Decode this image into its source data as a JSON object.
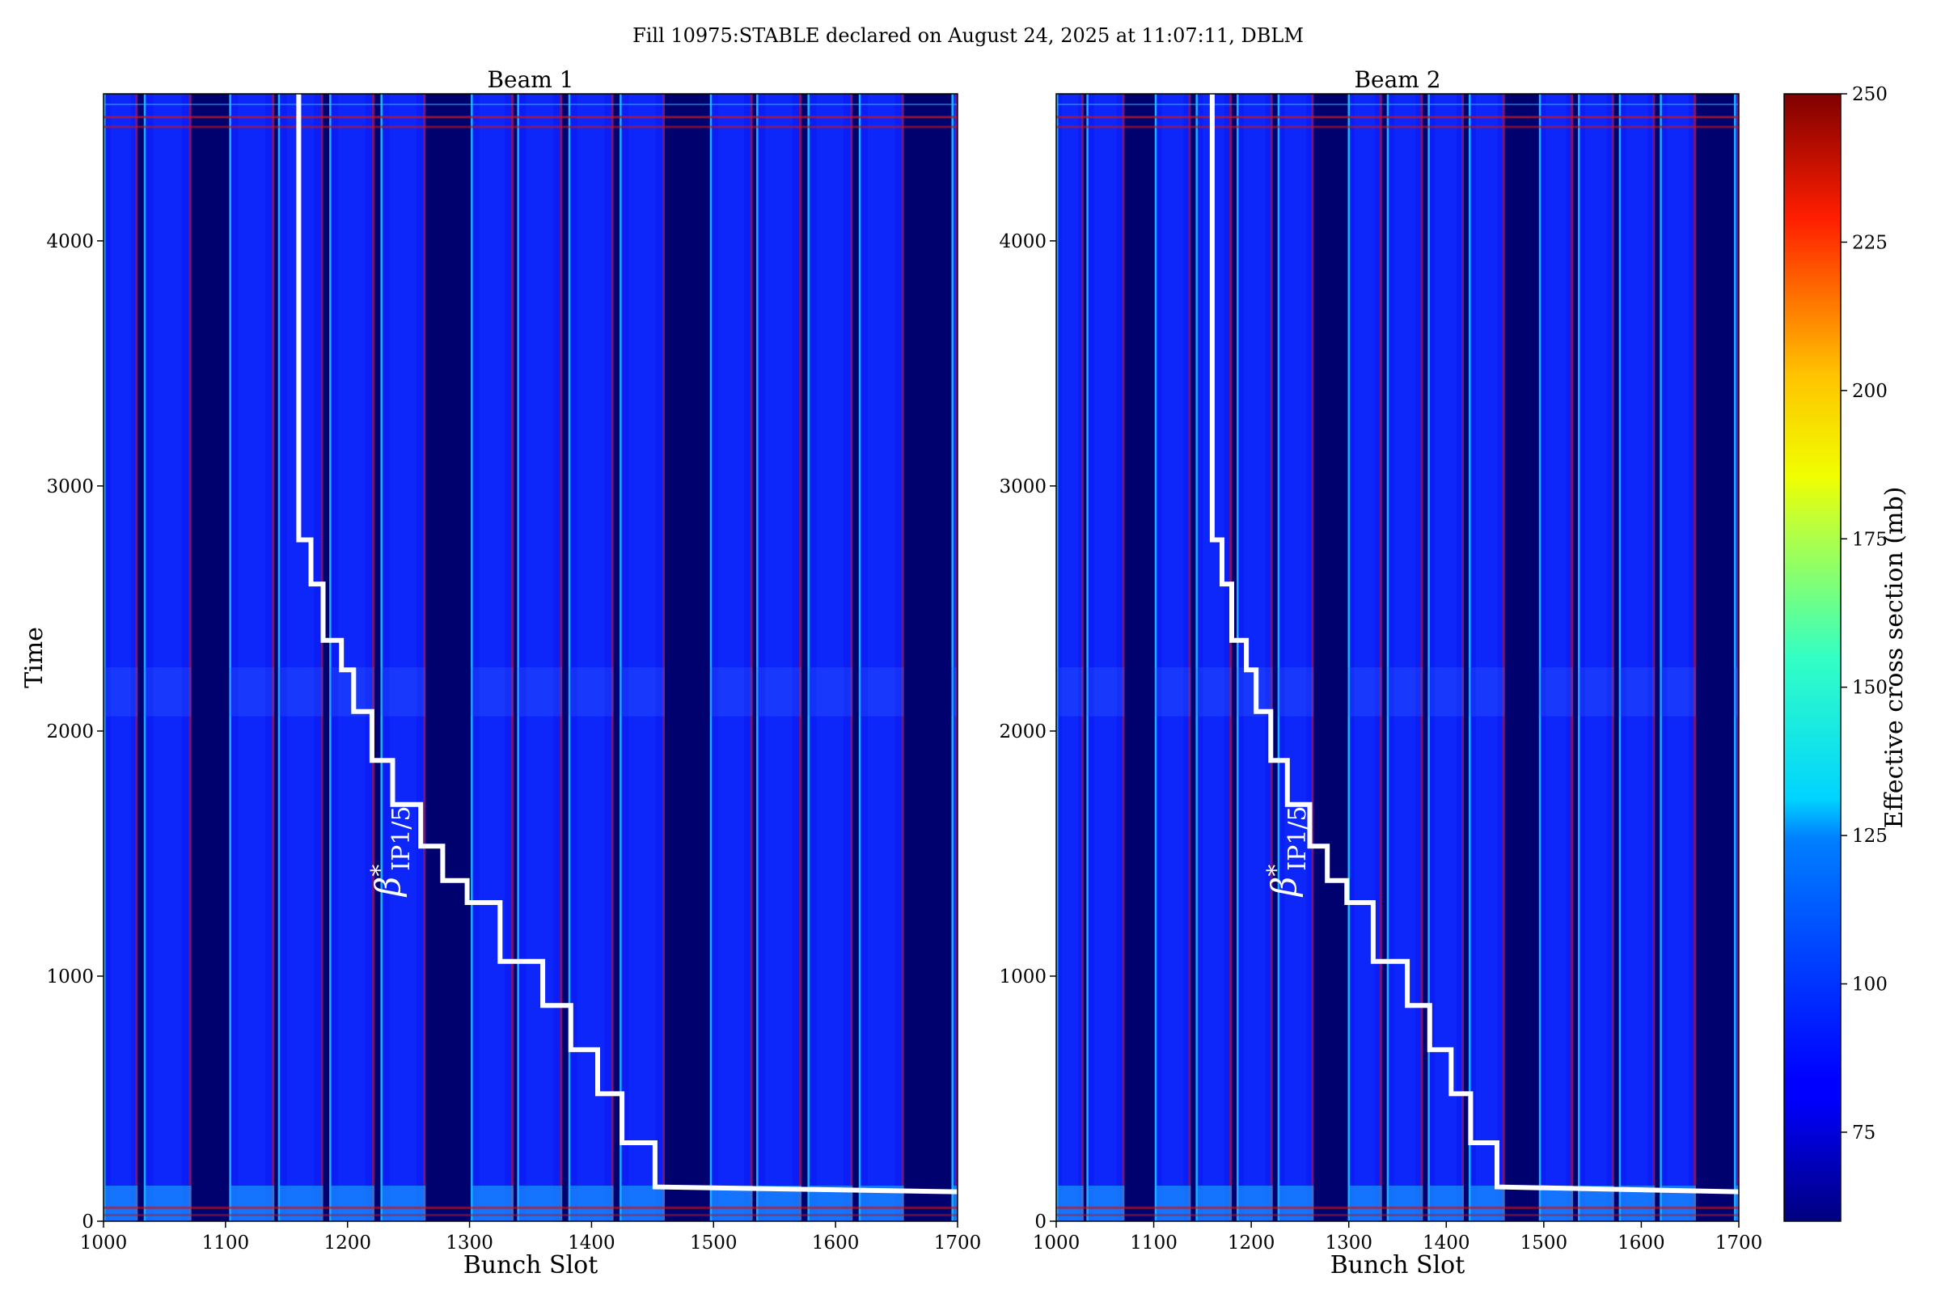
{
  "figure": {
    "suptitle": "Fill 10975:STABLE declared on August 24, 2025 at 11:07:11, DBLM"
  },
  "chart_data": [
    {
      "type": "heatmap",
      "title": "Beam 1",
      "xlabel": "Bunch Slot",
      "ylabel": "Time",
      "xlim": [
        1000,
        1700
      ],
      "ylim": [
        0,
        4600
      ],
      "xticks": [
        "1000",
        "1100",
        "1200",
        "1300",
        "1400",
        "1500",
        "1600",
        "1700"
      ],
      "yticks": [
        "0",
        "1000",
        "2000",
        "3000",
        "4000"
      ],
      "annotation": "β*IP1/5",
      "annotation_main": "β",
      "annotation_sup": "*",
      "annotation_sub": "IP1/5",
      "colormap": "jet",
      "filled_trains": [
        [
          1000,
          1028
        ],
        [
          1033,
          1072
        ],
        [
          1103,
          1140
        ],
        [
          1143,
          1180
        ],
        [
          1185,
          1222
        ],
        [
          1227,
          1264
        ],
        [
          1301,
          1336
        ],
        [
          1339,
          1376
        ],
        [
          1381,
          1418
        ],
        [
          1423,
          1460
        ],
        [
          1497,
          1532
        ],
        [
          1535,
          1572
        ],
        [
          1577,
          1614
        ],
        [
          1619,
          1656
        ],
        [
          1695,
          1700
        ]
      ],
      "beta_star_step": [
        [
          1160,
          4600
        ],
        [
          1160,
          2780
        ],
        [
          1170,
          2780
        ],
        [
          1170,
          2600
        ],
        [
          1180,
          2600
        ],
        [
          1180,
          2370
        ],
        [
          1195,
          2370
        ],
        [
          1195,
          2250
        ],
        [
          1205,
          2250
        ],
        [
          1205,
          2080
        ],
        [
          1220,
          2080
        ],
        [
          1220,
          1880
        ],
        [
          1237,
          1880
        ],
        [
          1237,
          1700
        ],
        [
          1260,
          1700
        ],
        [
          1260,
          1530
        ],
        [
          1278,
          1530
        ],
        [
          1278,
          1390
        ],
        [
          1298,
          1390
        ],
        [
          1298,
          1300
        ],
        [
          1325,
          1300
        ],
        [
          1325,
          1060
        ],
        [
          1360,
          1060
        ],
        [
          1360,
          880
        ],
        [
          1383,
          880
        ],
        [
          1383,
          700
        ],
        [
          1405,
          700
        ],
        [
          1405,
          520
        ],
        [
          1425,
          520
        ],
        [
          1425,
          320
        ],
        [
          1452,
          320
        ],
        [
          1452,
          140
        ],
        [
          1700,
          120
        ]
      ]
    },
    {
      "type": "heatmap",
      "title": "Beam 2",
      "xlabel": "Bunch Slot",
      "ylabel": "",
      "xlim": [
        1000,
        1700
      ],
      "ylim": [
        0,
        4600
      ],
      "xticks": [
        "1000",
        "1100",
        "1200",
        "1300",
        "1400",
        "1500",
        "1600",
        "1700"
      ],
      "yticks": [
        "0",
        "1000",
        "2000",
        "3000",
        "4000"
      ],
      "annotation": "β*IP1/5",
      "annotation_main": "β",
      "annotation_sup": "*",
      "annotation_sub": "IP1/5",
      "colormap": "jet",
      "filled_trains": [
        [
          1000,
          1028
        ],
        [
          1031,
          1070
        ],
        [
          1101,
          1138
        ],
        [
          1143,
          1180
        ],
        [
          1185,
          1222
        ],
        [
          1227,
          1264
        ],
        [
          1299,
          1334
        ],
        [
          1339,
          1376
        ],
        [
          1381,
          1418
        ],
        [
          1423,
          1460
        ],
        [
          1495,
          1530
        ],
        [
          1535,
          1572
        ],
        [
          1577,
          1614
        ],
        [
          1619,
          1656
        ],
        [
          1695,
          1700
        ]
      ],
      "beta_star_step": [
        [
          1160,
          4600
        ],
        [
          1160,
          2780
        ],
        [
          1170,
          2780
        ],
        [
          1170,
          2600
        ],
        [
          1180,
          2600
        ],
        [
          1180,
          2370
        ],
        [
          1195,
          2370
        ],
        [
          1195,
          2250
        ],
        [
          1205,
          2250
        ],
        [
          1205,
          2080
        ],
        [
          1220,
          2080
        ],
        [
          1220,
          1880
        ],
        [
          1237,
          1880
        ],
        [
          1237,
          1700
        ],
        [
          1260,
          1700
        ],
        [
          1260,
          1530
        ],
        [
          1278,
          1530
        ],
        [
          1278,
          1390
        ],
        [
          1298,
          1390
        ],
        [
          1298,
          1300
        ],
        [
          1325,
          1300
        ],
        [
          1325,
          1060
        ],
        [
          1360,
          1060
        ],
        [
          1360,
          880
        ],
        [
          1383,
          880
        ],
        [
          1383,
          700
        ],
        [
          1405,
          700
        ],
        [
          1405,
          520
        ],
        [
          1425,
          520
        ],
        [
          1425,
          320
        ],
        [
          1452,
          320
        ],
        [
          1452,
          140
        ],
        [
          1700,
          120
        ]
      ]
    }
  ],
  "colorbar": {
    "label": "Effective cross section (mb)",
    "min": 60,
    "max": 250,
    "ticks": [
      "75",
      "100",
      "125",
      "150",
      "175",
      "200",
      "225",
      "250"
    ]
  }
}
